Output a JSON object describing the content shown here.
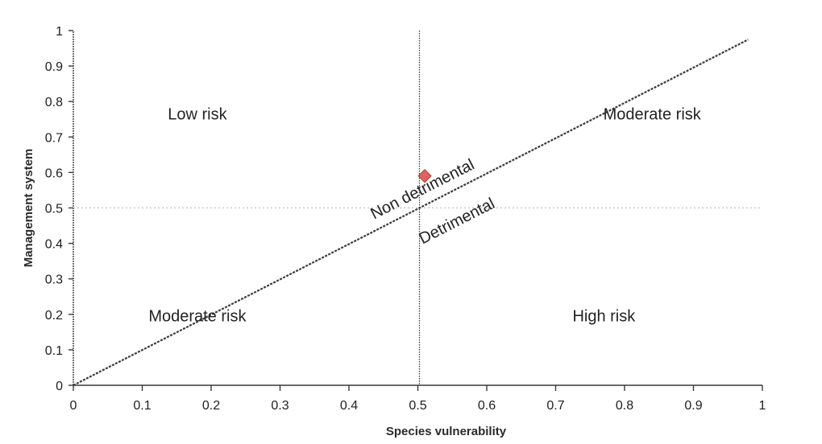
{
  "chart_data": {
    "type": "scatter",
    "title": "",
    "xlabel": "Species vulnerability",
    "ylabel": "Management system",
    "xlim": [
      0,
      1
    ],
    "ylim": [
      0,
      1
    ],
    "x_ticks": [
      "0",
      "0.1",
      "0.2",
      "0.3",
      "0.4",
      "0.5",
      "0.6",
      "0.7",
      "0.8",
      "0.9",
      "1"
    ],
    "y_ticks": [
      "0",
      "0.1",
      "0.2",
      "0.3",
      "0.4",
      "0.5",
      "0.6",
      "0.7",
      "0.8",
      "0.9",
      "1"
    ],
    "grid": false,
    "diagonal_line": {
      "x": [
        0,
        0.97
      ],
      "y": [
        0,
        0.97
      ],
      "style": "dashed"
    },
    "vertical_threshold": {
      "x": 0.5,
      "style": "dotted"
    },
    "horizontal_threshold": {
      "y": 0.5,
      "style": "dotted"
    },
    "regions": [
      {
        "label": "Low risk",
        "x": 0.18,
        "y": 0.75
      },
      {
        "label": "Moderate risk",
        "x": 0.84,
        "y": 0.75
      },
      {
        "label": "Moderate risk",
        "x": 0.18,
        "y": 0.18
      },
      {
        "label": "High risk",
        "x": 0.77,
        "y": 0.18
      }
    ],
    "line_labels": [
      {
        "label": "Non detrimental",
        "x": 0.51,
        "y": 0.54,
        "rotate": -27
      },
      {
        "label": "Detrimental",
        "x": 0.56,
        "y": 0.45,
        "rotate": -27
      }
    ],
    "points": [
      {
        "x": 0.51,
        "y": 0.59,
        "color": "#d9534f"
      }
    ]
  }
}
